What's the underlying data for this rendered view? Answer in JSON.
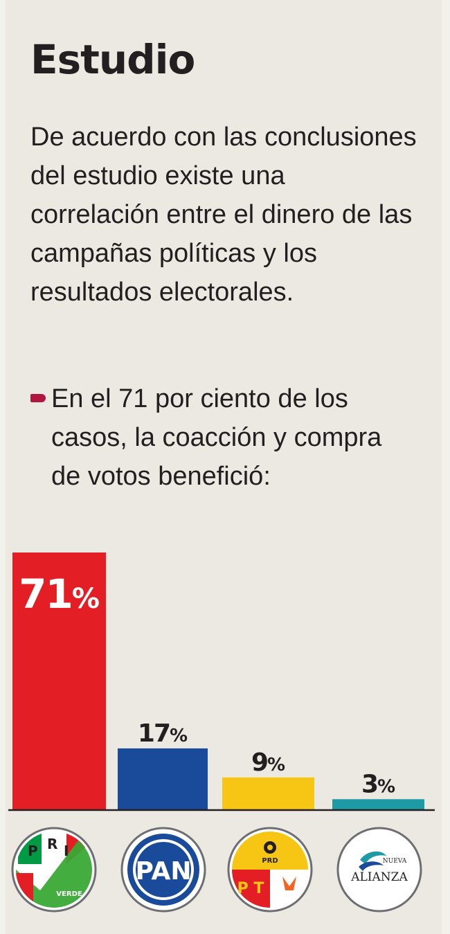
{
  "title": "Estudio",
  "intro": "De acuerdo con las conclusiones del estudio existe una correlación entre el dinero de las campañas políticas y los resultados electorales.",
  "bullet": "En el 71 por ciento de los casos, la coacción y compra de votos benefició:",
  "colors": {
    "bullet": "#b0163f",
    "pri": "#e31e24",
    "pan": "#1a4b9b",
    "prd": "#f7c614",
    "na": "#1e9aa5"
  },
  "chart_data": {
    "type": "bar",
    "categories": [
      "PRI-Verde",
      "PAN",
      "PRD-PT-Movimiento Ciudadano",
      "Nueva Alianza"
    ],
    "values": [
      71,
      17,
      9,
      3
    ],
    "value_labels": [
      "71%",
      "17%",
      "9%",
      "3%"
    ],
    "unit": "%",
    "colors": [
      "#e31e24",
      "#1a4b9b",
      "#f7c614",
      "#1e9aa5"
    ],
    "ylim": [
      0,
      71
    ],
    "grid": false,
    "legend": "none"
  },
  "logos": {
    "pri": {
      "letters": [
        "P",
        "R",
        "I"
      ],
      "sub": "VERDE",
      "icon": "pri-verde-logo-icon"
    },
    "pan": {
      "text": "PAN",
      "icon": "pan-logo-icon"
    },
    "prd": {
      "top": "PRD",
      "letters": "P T",
      "icon": "prd-pt-mc-logo-icon"
    },
    "na": {
      "small": "NUEVA",
      "big": "ALIANZA",
      "icon": "nueva-alianza-logo-icon"
    }
  }
}
